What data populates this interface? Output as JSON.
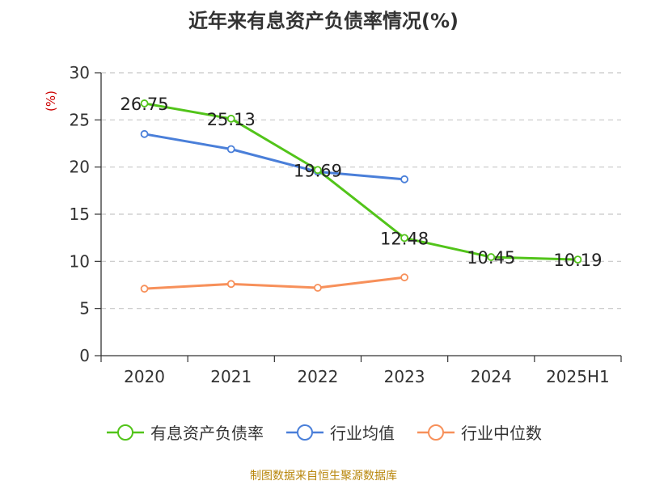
{
  "title": "近年来有息资产负债率情况(%)",
  "source": "制图数据来自恒生聚源数据库",
  "colors": {
    "series1": "#52c41a",
    "series2": "#4a7fd9",
    "series3": "#f7905a",
    "grid": "#c8c8c8",
    "axis": "#333333",
    "unit": "#cc0000"
  },
  "chart_data": {
    "type": "line",
    "title": "近年来有息资产负债率情况(%)",
    "ylabel": "(%)",
    "xlabel": "",
    "categories": [
      "2020",
      "2021",
      "2022",
      "2023",
      "2024",
      "2025H1"
    ],
    "ylim": [
      0,
      30
    ],
    "yticks": [
      0,
      5,
      10,
      15,
      20,
      25,
      30
    ],
    "grid": true,
    "legend_position": "bottom",
    "series": [
      {
        "name": "有息资产负债率",
        "color": "#52c41a",
        "values": [
          26.75,
          25.13,
          19.69,
          12.48,
          10.45,
          10.19
        ],
        "labels": [
          "26.75",
          "25.13",
          "19.69",
          "12.48",
          "10.45",
          "10.19"
        ]
      },
      {
        "name": "行业均值",
        "color": "#4a7fd9",
        "values": [
          23.5,
          21.9,
          19.5,
          18.7,
          null,
          null
        ]
      },
      {
        "name": "行业中位数",
        "color": "#f7905a",
        "values": [
          7.1,
          7.6,
          7.2,
          8.3,
          null,
          null
        ]
      }
    ]
  }
}
